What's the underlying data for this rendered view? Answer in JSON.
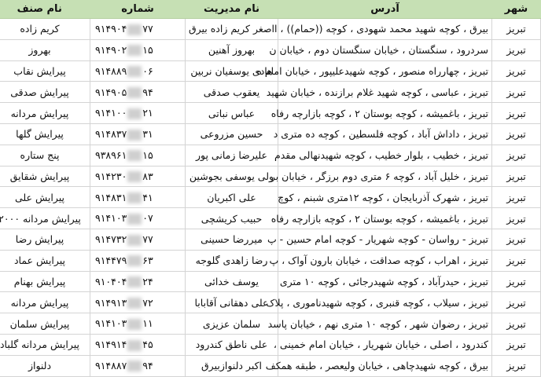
{
  "headers": {
    "city": "شهر",
    "address": "آدرس",
    "manager": "نام مدیریت",
    "phone": "شماره",
    "guild": "نام صنف"
  },
  "colors": {
    "header_bg": "#c6e0b4",
    "grid": "#d4d4d4"
  },
  "rows": [
    {
      "city": "تبریز",
      "address": "بیرق ، کوچه شهید محمد شهودی ، کوچه ((حمام)) ، ا",
      "manager": "اصغر کریم زاده بیرق",
      "phone_prefix": "۹۱۴۹۰۴",
      "phone_suffix": "۷۷",
      "guild": "کریم زاده"
    },
    {
      "city": "تبریز",
      "address": "سردرود ، سنگستان ، خیابان سنگستان دوم ، خیابان ن",
      "manager": "بهروز آهنین",
      "phone_prefix": "۹۱۴۹۰۲",
      "phone_suffix": "۱۵",
      "guild": "بهروز"
    },
    {
      "city": "تبریز",
      "address": "تبریز ، چهارراه منصور ، کوچه شهیدعلیپور ، خیابان امام ه",
      "manager": "هادی یوسفیان نربین",
      "phone_prefix": "۹۱۴۸۸۹",
      "phone_suffix": "۰۶",
      "guild": "پیرایش نقاب"
    },
    {
      "city": "تبریز",
      "address": "تبریز ، عباسی ، کوچه شهید غلام برازنده ، خیابان شهید",
      "manager": "یعقوب صدقی",
      "phone_prefix": "۹۱۴۹۰۵",
      "phone_suffix": "۹۴",
      "guild": "پیرایش صدقی"
    },
    {
      "city": "تبریز",
      "address": "تبریز ، باغمیشه ، کوچه بوستان ۲ ، کوچه بازارچه رفاه",
      "manager": "عباس نباتی",
      "phone_prefix": "۹۱۴۱۰۰",
      "phone_suffix": "۲۱",
      "guild": "پیرایش مردانه"
    },
    {
      "city": "تبریز",
      "address": "تبریز ، داداش آباد ، کوچه فلسطین ، کوچه ده متری د",
      "manager": "حسین مزروعی",
      "phone_prefix": "۹۱۴۸۳۷",
      "phone_suffix": "۳۱",
      "guild": "پیرایش گلها"
    },
    {
      "city": "تبریز",
      "address": "تبریز ، خطیب ، بلوار خطیب ، کوچه شهیدنهالی مقدم",
      "manager": "علیرضا زمانی پور",
      "phone_prefix": "۹۳۸۹۶۱",
      "phone_suffix": "۱۵",
      "guild": "پنج ستاره"
    },
    {
      "city": "تبریز",
      "address": "تبریز ، خلیل آباد ، کوچه ۶ متری دوم برزگر ، خیابان بر",
      "manager": "ولی یوسفی بجوشین",
      "phone_prefix": "۹۱۴۲۳۰",
      "phone_suffix": "۸۳",
      "guild": "پیرایش شقایق"
    },
    {
      "city": "تبریز",
      "address": "تبریز ، شهرک آذربایجان ، کوچه ۱۲متری شبنم ، کوچ",
      "manager": "علی اکبریان",
      "phone_prefix": "۹۱۴۸۳۱",
      "phone_suffix": "۴۱",
      "guild": "پیرایش علی"
    },
    {
      "city": "تبریز",
      "address": "تبریز ، باغمیشه ، کوچه بوستان ۲ ، کوچه بازارچه رفاه",
      "manager": "حبیب کریشچی",
      "phone_prefix": "۹۱۴۱۰۳",
      "phone_suffix": "۰۷",
      "guild": "پیرایش مردانه ۲۰۰۰"
    },
    {
      "city": "تبریز",
      "address": "تبریز - رواسان - کوچه شهریار - کوچه امام حسین - پ",
      "manager": "میررضا حسینی",
      "phone_prefix": "۹۱۴۷۳۲",
      "phone_suffix": "۷۷",
      "guild": "پیرایش رضا"
    },
    {
      "city": "تبریز",
      "address": "تبریز ، اهراب ، کوچه صداقت ، خیابان بارون آواک ، پ",
      "manager": "رضا زاهدی گلوجه",
      "phone_prefix": "۹۱۴۴۷۹",
      "phone_suffix": "۶۳",
      "guild": "پیرایش عماد"
    },
    {
      "city": "تبریز",
      "address": "تبریز ، حیدرآباد ، کوچه شهیدرجائی ، کوچه ۱۰ متری",
      "manager": "یوسف خدائی",
      "phone_prefix": "۹۱۰۴۰۴",
      "phone_suffix": "۲۴",
      "guild": "پیرایش بهنام"
    },
    {
      "city": "تبریز",
      "address": "تبریز ، سیلاب ، کوچه قنبری ، کوچه شهیدناموری ، پلاک",
      "manager": "علی دهقانی آقابابا",
      "phone_prefix": "۹۱۴۹۱۳",
      "phone_suffix": "۷۲",
      "guild": "پیرایش مردانه"
    },
    {
      "city": "تبریز",
      "address": "تبریز ، رضوان شهر ، کوچه ۱۰ متری نهم ، خیابان پاسد",
      "manager": "سلمان عزیزی",
      "phone_prefix": "۹۱۴۱۰۳",
      "phone_suffix": "۱۱",
      "guild": "پیرایش سلمان"
    },
    {
      "city": "تبریز",
      "address": "کندرود ، اصلی ، خیابان شهریار ، خیابان امام خمینی ،",
      "manager": "علی ناطق کندرود",
      "phone_prefix": "۹۱۴۹۱۴",
      "phone_suffix": "۴۵",
      "guild": "پیرایش مردانه گلباد"
    },
    {
      "city": "تبریز",
      "address": "بیرق ، کوچه شهیدچاهی ، خیابان ولیعصر ، طبقه همکف",
      "manager": "اکبر دلنوازبیرق",
      "phone_prefix": "۹۱۴۸۸۷",
      "phone_suffix": "۹۴",
      "guild": "دلنواز"
    }
  ]
}
